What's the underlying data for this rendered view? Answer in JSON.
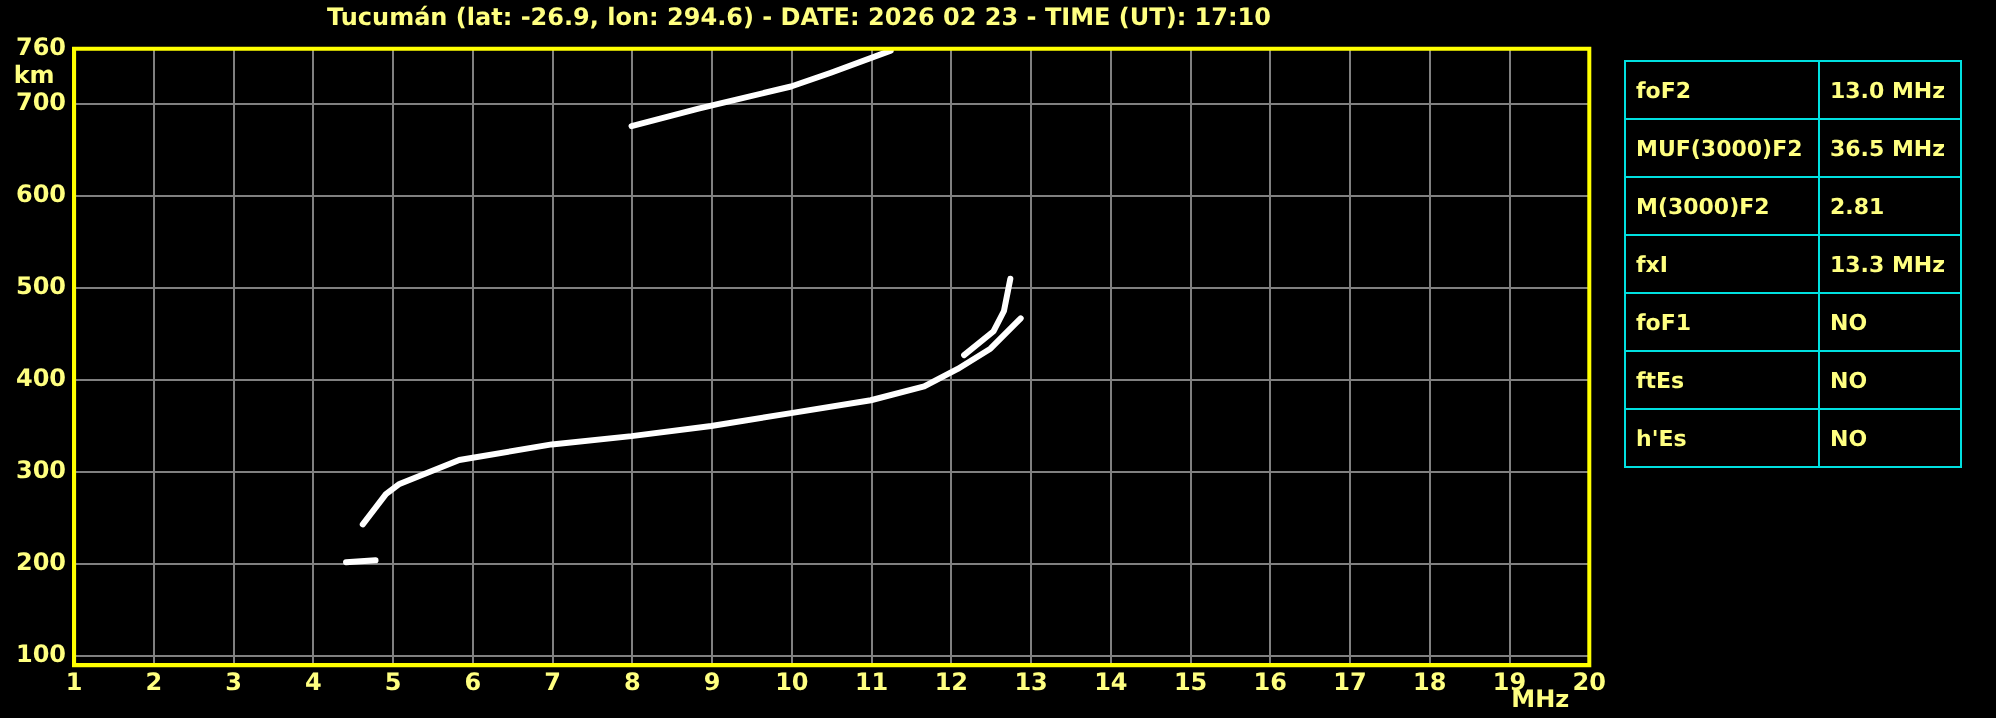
{
  "chart_data": {
    "type": "line",
    "title": "Tucumán (lat: -26.9, lon: 294.6) - DATE: 2026 02 23 - TIME (UT): 17:10",
    "xlabel": "MHz",
    "ylabel": "km",
    "series": [
      {
        "color": "#ffffff",
        "x": [
          4.62,
          4.91,
          5.08,
          5.83,
          6.99,
          7.99,
          8.99,
          9.99,
          10.99,
          11.66,
          12.08,
          12.49,
          12.87
        ],
        "values": [
          243,
          276,
          287,
          313,
          330,
          339,
          350,
          364,
          378,
          393,
          412,
          434,
          467
        ]
      },
      {
        "color": "#ffffff",
        "x": [
          12.16,
          12.53,
          12.66,
          12.74
        ],
        "values": [
          427,
          453,
          475,
          510
        ]
      },
      {
        "color": "#ffffff",
        "x": [
          4.41,
          4.78
        ],
        "values": [
          202,
          204
        ]
      },
      {
        "color": "#ffffff",
        "x": [
          7.99,
          8.83,
          9.99,
          10.49,
          11.24
        ],
        "values": [
          676,
          695,
          719,
          734,
          758
        ]
      }
    ],
    "xlim": [
      1,
      20
    ],
    "xticks": [
      1,
      2,
      3,
      4,
      5,
      6,
      7,
      8,
      9,
      10,
      11,
      12,
      13,
      14,
      15,
      16,
      17,
      18,
      19,
      20
    ],
    "ylim": [
      90,
      760
    ],
    "yticks": [
      100,
      200,
      300,
      400,
      500,
      600,
      700,
      760
    ],
    "grid": true,
    "annotations": [
      "foF2",
      "13.0 MHz",
      "MUF(3000)F2",
      "36.5 MHz",
      "M(3000)F2",
      "2.81",
      "fxI",
      "13.3 MHz",
      "foF1",
      "NO",
      "ftEs",
      "NO",
      "h'Es",
      "NO"
    ]
  }
}
